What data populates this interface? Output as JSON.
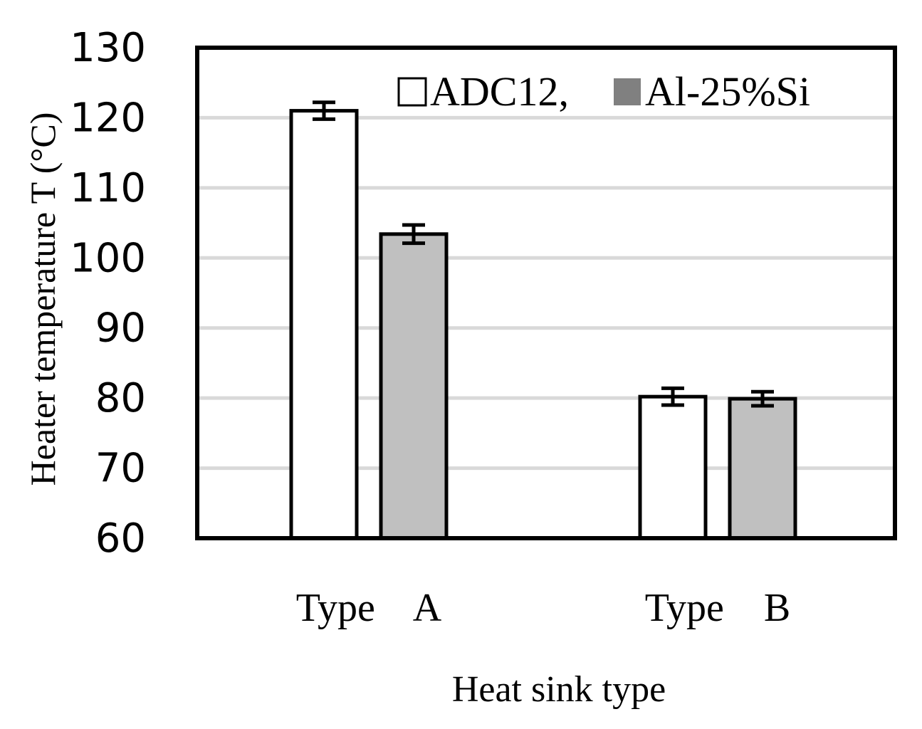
{
  "chart_data": {
    "type": "bar",
    "categories": [
      "Type    A",
      "Type    B"
    ],
    "series": [
      {
        "name": "ADC12,",
        "color": "#ffffff",
        "values": [
          121.0,
          80.2
        ],
        "errors": [
          1.2,
          1.2
        ]
      },
      {
        "name": "Al-25%Si",
        "color": "#c0c0c0",
        "legend_color": "#808080",
        "values": [
          103.4,
          79.9
        ],
        "errors": [
          1.3,
          1.0
        ]
      }
    ],
    "title": "",
    "xlabel": "Heat sink type",
    "ylabel": "Heater temperature T (°C)",
    "ylim": [
      60,
      130
    ],
    "yticks": [
      "60",
      "70",
      "80",
      "90",
      "100",
      "110",
      "120",
      "130"
    ],
    "grid": true,
    "legend_position": "top-right"
  }
}
